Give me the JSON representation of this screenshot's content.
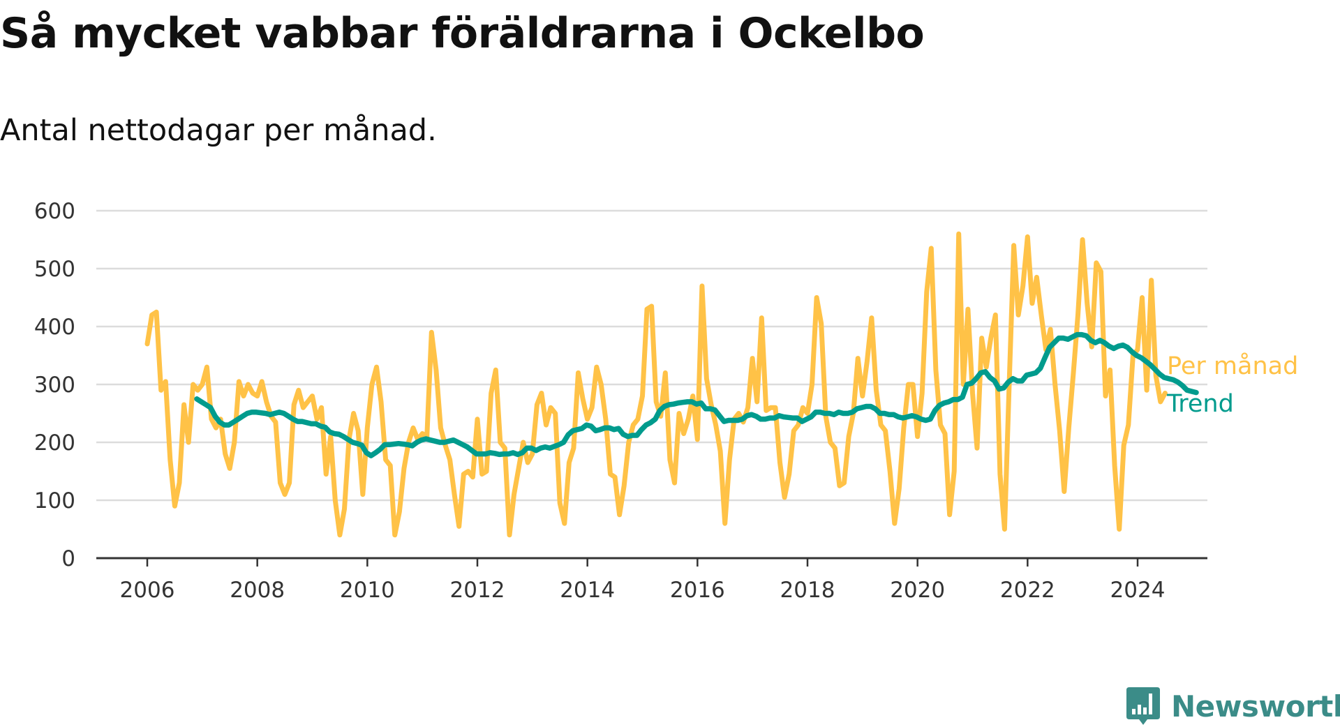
{
  "header": {
    "title": "Så mycket vabbar föräldrarna i Ockelbo",
    "subtitle": "Antal nettodagar per månad."
  },
  "brand": {
    "name": "Newsworthy",
    "color": "#3b8c88",
    "icon": "bar-chart-badge-icon"
  },
  "chart_data": {
    "type": "line",
    "title": "Så mycket vabbar föräldrarna i Ockelbo",
    "subtitle": "Antal nettodagar per månad.",
    "xlabel": "",
    "ylabel": "",
    "xlim": [
      2005.55,
      2025.2
    ],
    "ylim": [
      0,
      600
    ],
    "grid": true,
    "legend": "end-of-line labels, right",
    "x_ticks": [
      2006,
      2008,
      2010,
      2012,
      2014,
      2016,
      2018,
      2020,
      2022,
      2024
    ],
    "y_ticks": [
      0,
      100,
      200,
      300,
      400,
      500,
      600
    ],
    "series": [
      {
        "name": "Per månad",
        "color": "#ffc247",
        "x_start": 2006.0,
        "step": 0.08333,
        "values": [
          370,
          420,
          425,
          290,
          305,
          170,
          90,
          130,
          265,
          200,
          300,
          290,
          300,
          330,
          240,
          225,
          240,
          180,
          155,
          200,
          305,
          280,
          300,
          285,
          280,
          305,
          270,
          245,
          235,
          130,
          110,
          130,
          265,
          290,
          260,
          270,
          280,
          240,
          260,
          145,
          210,
          100,
          40,
          85,
          205,
          250,
          220,
          110,
          225,
          300,
          330,
          270,
          170,
          160,
          40,
          80,
          155,
          200,
          225,
          205,
          215,
          210,
          390,
          325,
          225,
          195,
          170,
          110,
          55,
          145,
          150,
          140,
          240,
          145,
          150,
          285,
          325,
          200,
          190,
          40,
          110,
          155,
          200,
          165,
          180,
          265,
          285,
          230,
          260,
          250,
          95,
          60,
          165,
          190,
          320,
          275,
          240,
          260,
          330,
          300,
          240,
          145,
          140,
          75,
          125,
          200,
          230,
          240,
          280,
          430,
          435,
          270,
          245,
          320,
          170,
          130,
          250,
          215,
          240,
          280,
          205,
          470,
          310,
          265,
          230,
          185,
          60,
          170,
          240,
          250,
          235,
          260,
          345,
          270,
          415,
          255,
          260,
          260,
          165,
          105,
          145,
          220,
          230,
          260,
          250,
          300,
          450,
          405,
          245,
          200,
          190,
          125,
          130,
          210,
          250,
          345,
          280,
          340,
          415,
          290,
          230,
          220,
          150,
          60,
          120,
          225,
          300,
          300,
          210,
          285,
          460,
          535,
          325,
          230,
          215,
          75,
          150,
          560,
          300,
          430,
          285,
          190,
          380,
          330,
          380,
          420,
          145,
          50,
          300,
          540,
          420,
          470,
          555,
          440,
          485,
          420,
          360,
          395,
          300,
          220,
          115,
          225,
          320,
          420,
          550,
          440,
          365,
          510,
          495,
          280,
          325,
          160,
          50,
          195,
          230,
          350,
          360,
          450,
          290,
          480,
          315,
          270,
          285
        ]
      },
      {
        "name": "Trend",
        "color": "#009b8d",
        "x_start": 2006.9,
        "step": 0.08333,
        "values": [
          275,
          270,
          265,
          260,
          245,
          235,
          230,
          230,
          235,
          240,
          245,
          250,
          252,
          252,
          251,
          250,
          248,
          250,
          252,
          250,
          245,
          240,
          236,
          236,
          234,
          232,
          232,
          228,
          226,
          218,
          215,
          214,
          210,
          205,
          200,
          198,
          195,
          182,
          177,
          182,
          188,
          196,
          196,
          197,
          198,
          197,
          196,
          194,
          200,
          204,
          206,
          204,
          202,
          200,
          200,
          202,
          204,
          200,
          196,
          192,
          186,
          180,
          180,
          180,
          182,
          181,
          179,
          180,
          180,
          182,
          179,
          182,
          190,
          190,
          186,
          190,
          192,
          190,
          193,
          196,
          200,
          213,
          220,
          222,
          224,
          230,
          228,
          220,
          222,
          225,
          225,
          222,
          224,
          214,
          210,
          212,
          212,
          222,
          230,
          234,
          240,
          255,
          262,
          265,
          266,
          268,
          269,
          270,
          270,
          266,
          268,
          258,
          258,
          256,
          246,
          236,
          238,
          238,
          238,
          240,
          246,
          248,
          245,
          240,
          240,
          242,
          242,
          246,
          244,
          243,
          242,
          242,
          236,
          240,
          244,
          252,
          252,
          250,
          250,
          248,
          252,
          250,
          250,
          252,
          258,
          260,
          262,
          262,
          258,
          250,
          250,
          248,
          248,
          244,
          242,
          244,
          246,
          244,
          240,
          238,
          240,
          255,
          264,
          268,
          270,
          274,
          274,
          278,
          300,
          302,
          310,
          320,
          322,
          312,
          306,
          292,
          294,
          304,
          310,
          306,
          306,
          316,
          318,
          320,
          328,
          346,
          364,
          372,
          380,
          380,
          378,
          382,
          386,
          386,
          384,
          376,
          372,
          376,
          372,
          366,
          362,
          366,
          368,
          364,
          356,
          350,
          346,
          340,
          334,
          326,
          318,
          312,
          310,
          308,
          304,
          298,
          290,
          288,
          286
        ]
      }
    ]
  }
}
